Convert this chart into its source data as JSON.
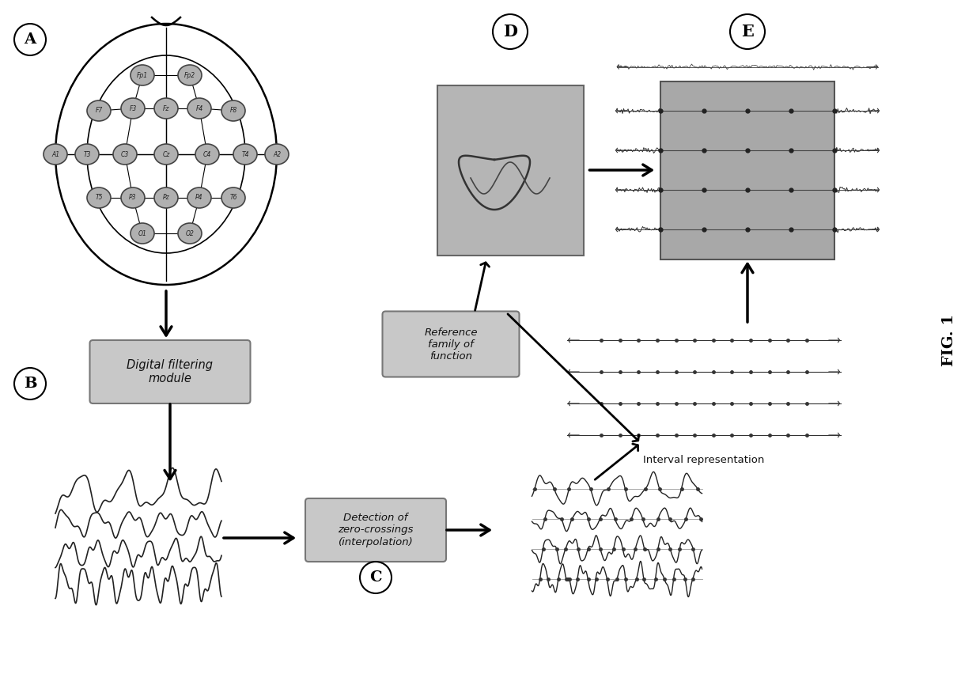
{
  "title": "FIG. 1",
  "label_A": "A",
  "label_B": "B",
  "label_C": "C",
  "label_D": "D",
  "label_E": "E",
  "box_B_text": "Digital filtering\nmodule",
  "box_C_text": "Detection of\nzero-crossings\n(interpolation)",
  "box_ref_text": "Reference\nfamily of\nfunction",
  "interval_text": "Interval representation",
  "bg_color": "#ffffff",
  "eeg_color": "#222222",
  "box_fill": "#c8c8c8",
  "box_edge": "#777777",
  "head_color": "#dddddd",
  "electrode_fill": "#b0b0b0",
  "electrode_edge": "#444444",
  "arrow_color": "#111111",
  "matrix_fill": "#aaaaaa",
  "d_fill": "#b5b5b5",
  "e_fill": "#a8a8a8"
}
